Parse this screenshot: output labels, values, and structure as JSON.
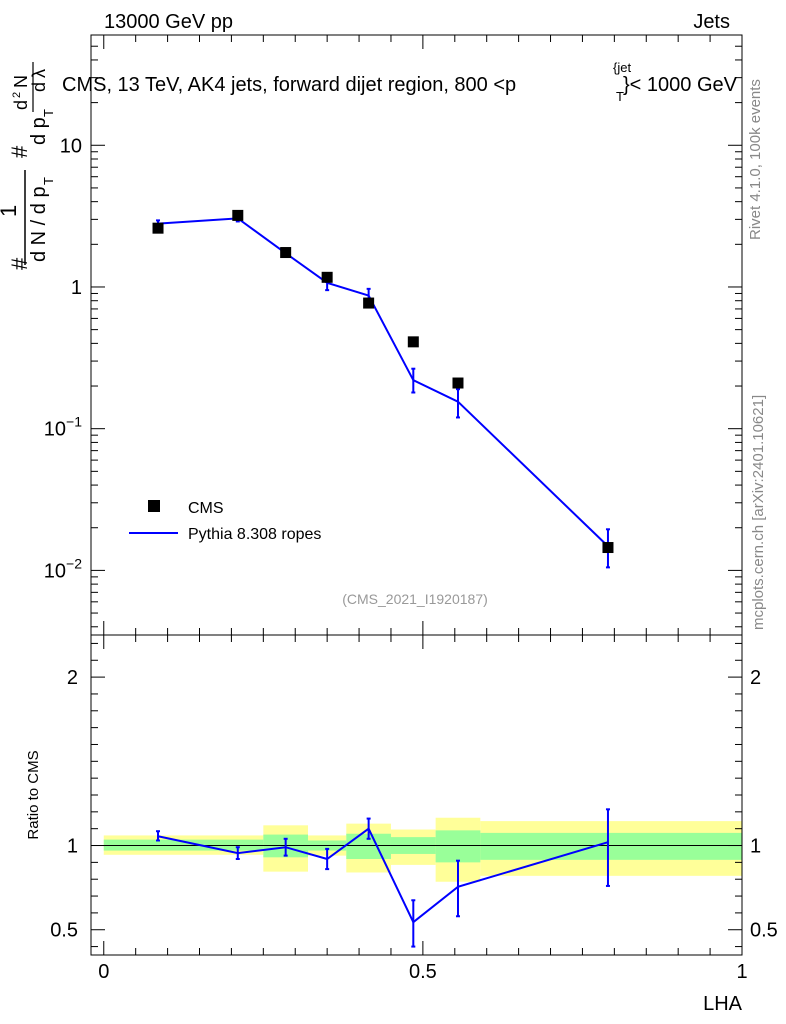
{
  "header": {
    "left": "13000 GeV pp",
    "right": "Jets"
  },
  "side_labels": {
    "rivet": "Rivet 4.1.0,  100k events",
    "mcplots": "mcplots.cern.ch [arXiv:2401.10621]"
  },
  "chart_data": [
    {
      "type": "line",
      "title": "CMS, 13 TeV, AK4 jets, forward dijet region, 800 <p",
      "title_sup": "{jet",
      "title_sub": "T",
      "title_end": "}< 1000 GeV",
      "ylabel_parts": [
        "#",
        "1",
        "d N / d p",
        "T",
        "#",
        "d p",
        "T",
        "d",
        "2",
        "N",
        "d",
        "λ"
      ],
      "xlabel": "LHA",
      "yscale": "log",
      "ylim": [
        0.0035,
        60
      ],
      "xlim": [
        -0.02,
        1.0
      ],
      "y_tick_labels": [
        {
          "value": 0.01,
          "base": "10",
          "exp": "−2"
        },
        {
          "value": 0.1,
          "base": "10",
          "exp": "−1"
        },
        {
          "value": 1,
          "base": "1",
          "exp": ""
        },
        {
          "value": 10,
          "base": "10",
          "exp": ""
        }
      ],
      "watermark": "(CMS_2021_I1920187)",
      "legend": {
        "position": "bottom-left",
        "entries": [
          "CMS",
          "Pythia 8.308 ropes"
        ]
      },
      "series": [
        {
          "name": "CMS",
          "style": "markers",
          "x": [
            0.085,
            0.21,
            0.285,
            0.35,
            0.415,
            0.485,
            0.555,
            0.79
          ],
          "y": [
            2.6,
            3.2,
            1.75,
            1.17,
            0.77,
            0.41,
            0.21,
            0.0145
          ]
        },
        {
          "name": "Pythia 8.308 ropes",
          "style": "line",
          "color": "#0000ff",
          "x": [
            0.085,
            0.21,
            0.285,
            0.35,
            0.415,
            0.485,
            0.555,
            0.79
          ],
          "y": [
            2.8,
            3.05,
            1.73,
            1.07,
            0.87,
            0.22,
            0.155,
            0.0148
          ],
          "err_low": [
            2.65,
            2.9,
            1.63,
            0.95,
            0.77,
            0.18,
            0.12,
            0.0105
          ],
          "err_high": [
            2.95,
            3.2,
            1.83,
            1.2,
            0.97,
            0.265,
            0.19,
            0.0195
          ]
        }
      ]
    },
    {
      "type": "line",
      "ylabel": "Ratio to CMS",
      "xlabel": "LHA",
      "ylim": [
        0.35,
        2.25
      ],
      "xlim": [
        -0.02,
        1.0
      ],
      "x_tick_labels": [
        {
          "value": 0,
          "label": "0"
        },
        {
          "value": 0.5,
          "label": "0.5"
        },
        {
          "value": 1,
          "label": "1"
        }
      ],
      "y_tick_labels": [
        {
          "value": 0.5,
          "label": "0.5"
        },
        {
          "value": 1,
          "label": "1"
        },
        {
          "value": 2,
          "label": "2"
        }
      ],
      "bands": [
        {
          "x0": 0.0,
          "x1": 0.25,
          "yellow": [
            0.945,
            1.06
          ],
          "green": [
            0.97,
            1.035
          ]
        },
        {
          "x0": 0.25,
          "x1": 0.32,
          "yellow": [
            0.845,
            1.12
          ],
          "green": [
            0.93,
            1.065
          ]
        },
        {
          "x0": 0.32,
          "x1": 0.38,
          "yellow": [
            0.94,
            1.06
          ],
          "green": [
            0.97,
            1.03
          ]
        },
        {
          "x0": 0.38,
          "x1": 0.45,
          "yellow": [
            0.84,
            1.13
          ],
          "green": [
            0.92,
            1.07
          ]
        },
        {
          "x0": 0.45,
          "x1": 0.52,
          "yellow": [
            0.885,
            1.095
          ],
          "green": [
            0.95,
            1.05
          ]
        },
        {
          "x0": 0.52,
          "x1": 0.59,
          "yellow": [
            0.785,
            1.165
          ],
          "green": [
            0.9,
            1.09
          ]
        },
        {
          "x0": 0.59,
          "x1": 1.0,
          "yellow": [
            0.82,
            1.145
          ],
          "green": [
            0.915,
            1.075
          ]
        }
      ],
      "series": [
        {
          "name": "Pythia 8.308 ropes / CMS",
          "color": "#0000ff",
          "x": [
            0.085,
            0.21,
            0.285,
            0.35,
            0.415,
            0.485,
            0.555,
            0.79
          ],
          "y": [
            1.055,
            0.955,
            0.99,
            0.92,
            1.1,
            0.545,
            0.755,
            1.02
          ],
          "err_low": [
            1.03,
            0.92,
            0.94,
            0.86,
            1.04,
            0.4,
            0.58,
            0.76
          ],
          "err_high": [
            1.085,
            0.99,
            1.04,
            0.98,
            1.16,
            0.675,
            0.91,
            1.215
          ]
        }
      ]
    }
  ]
}
